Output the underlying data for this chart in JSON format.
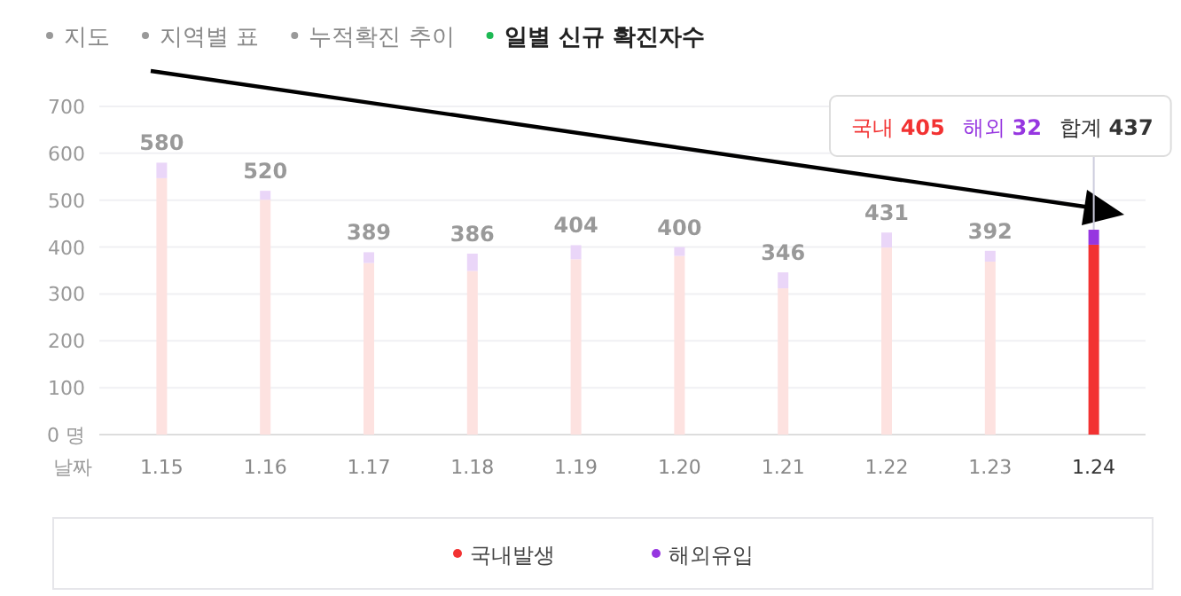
{
  "chart_data": {
    "type": "bar",
    "stacked": true,
    "title": "일별 신규 확진자수",
    "xlabel": "날짜",
    "categories": [
      "1.15",
      "1.16",
      "1.17",
      "1.18",
      "1.19",
      "1.20",
      "1.21",
      "1.22",
      "1.23",
      "1.24"
    ],
    "series": [
      {
        "name": "국내발생",
        "color": "#f23232",
        "colors": [
          "#fde2e0",
          "#fde2e0",
          "#fde2e0",
          "#fde2e0",
          "#fde2e0",
          "#fde2e0",
          "#fde2e0",
          "#fde2e0",
          "#fde2e0",
          "#f23232"
        ],
        "values": [
          547,
          501,
          366,
          349,
          374,
          381,
          312,
          399,
          369,
          405
        ]
      },
      {
        "name": "해외유입",
        "color": "#9636e0",
        "colors": [
          "#ead6f8",
          "#ead6f8",
          "#ead6f8",
          "#ead6f8",
          "#ead6f8",
          "#ead6f8",
          "#ead6f8",
          "#ead6f8",
          "#ead6f8",
          "#9636e0"
        ],
        "values": [
          33,
          19,
          23,
          37,
          30,
          19,
          34,
          32,
          23,
          32
        ]
      }
    ],
    "totals": [
      "580",
      "520",
      "389",
      "386",
      "404",
      "400",
      "346",
      "431",
      "392",
      null
    ],
    "ylim": [
      0,
      700
    ],
    "yticks": [
      {
        "value": 0,
        "label": "0 명"
      },
      100,
      200,
      300,
      400,
      500,
      600,
      700
    ],
    "grid": "y",
    "legend": "bottom",
    "annotations": [
      "지도",
      "지역별 표",
      "누적확진 추이",
      "국내 405",
      "해외 32",
      {
        "text": "합계 437",
        "x": "1.24",
        "y": 437
      }
    ]
  }
}
